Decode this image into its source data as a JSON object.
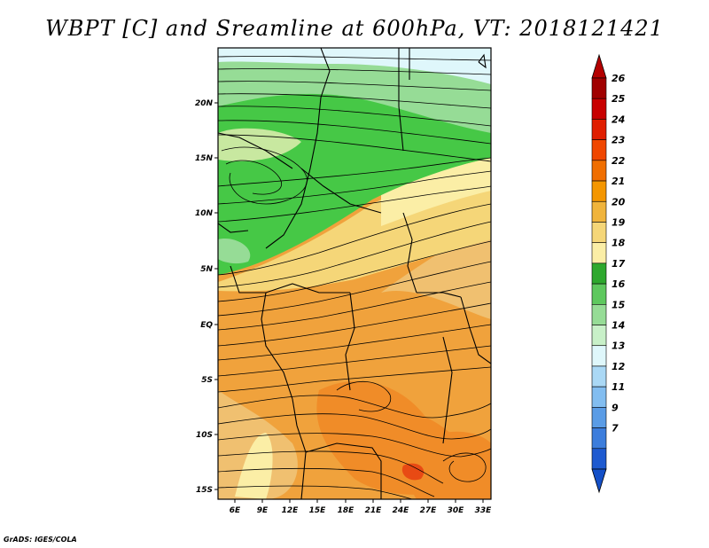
{
  "title": "WBPT [C] and Sreamline at 600hPa, VT: 2018121421",
  "credit": "GrADS: IGES/COLA",
  "lat_labels": [
    "20N",
    "15N",
    "10N",
    "5N",
    "EQ",
    "5S",
    "10S",
    "15S"
  ],
  "lon_labels": [
    "6E",
    "9E",
    "12E",
    "15E",
    "18E",
    "21E",
    "24E",
    "27E",
    "30E",
    "33E"
  ],
  "colorbar": {
    "labels": [
      "26",
      "25",
      "24",
      "23",
      "22",
      "21",
      "20",
      "19",
      "18",
      "17",
      "16",
      "15",
      "14",
      "13",
      "12",
      "11",
      "9",
      "7"
    ],
    "colors": [
      "#a00000",
      "#c80000",
      "#e01e00",
      "#f04600",
      "#f06e00",
      "#f49600",
      "#f0b43c",
      "#f5d678",
      "#fbeea6",
      "#2ea82e",
      "#5ec85e",
      "#96dc96",
      "#c8f0c8",
      "#dff7fb",
      "#aad8f5",
      "#82bdf0",
      "#5a9ce6",
      "#3c7ddc",
      "#1e5ad0"
    ],
    "top_color": "#b40000",
    "bottom_color": "#1450c8"
  },
  "field_colors": {
    "pale_blue": "#dff7fb",
    "light_green": "#96dc96",
    "green": "#46c846",
    "pale_yellow": "#fbeea6",
    "yellow": "#f5d678",
    "tan": "#f0c070",
    "orange": "#f0a23c",
    "dark_orange": "#f08c28",
    "red": "#e84a14"
  }
}
